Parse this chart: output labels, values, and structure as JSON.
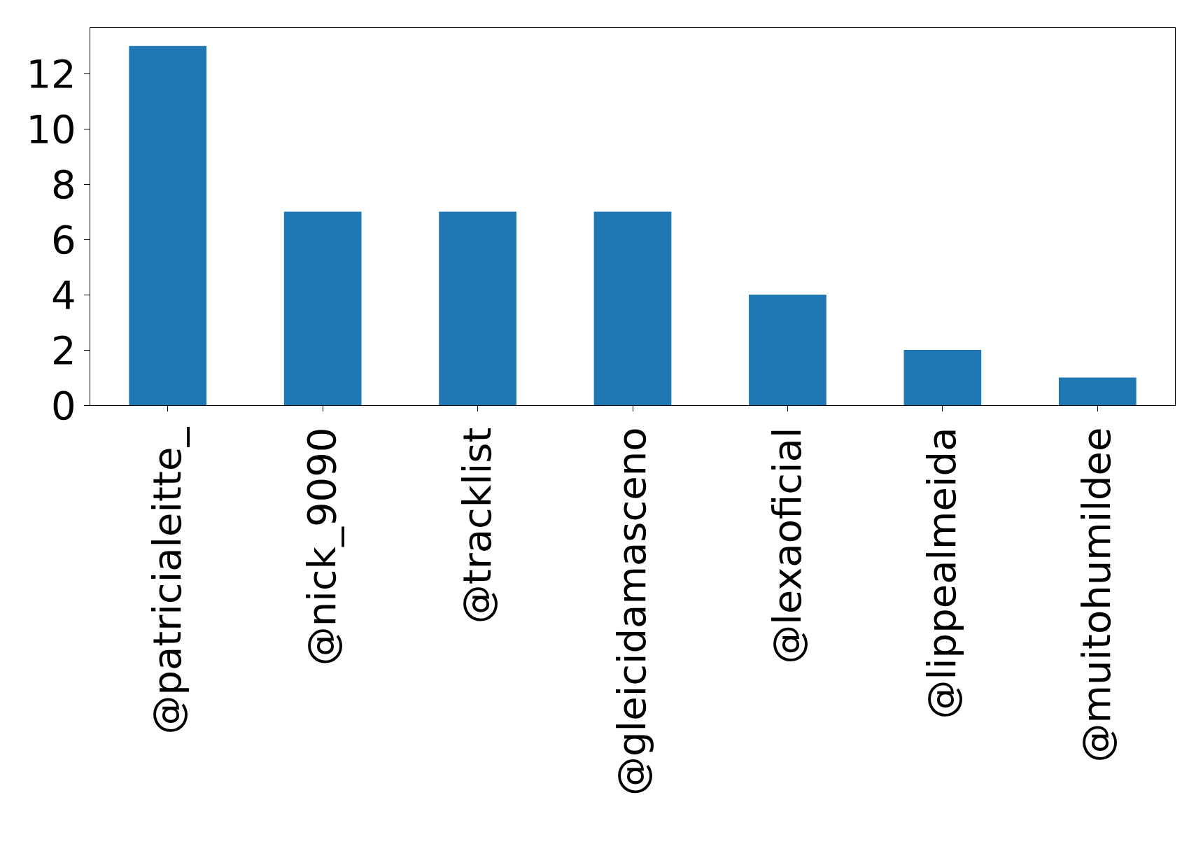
{
  "chart_data": {
    "type": "bar",
    "categories": [
      "@patricialeitte_",
      "@nick_9090",
      "@tracklist",
      "@gleicidamasceno",
      "@lexaoficial",
      "@lippealmeida",
      "@muitohumildee"
    ],
    "values": [
      13,
      7,
      7,
      7,
      4,
      2,
      1
    ],
    "color": "#1f77b4",
    "ylim": [
      0,
      13.65
    ],
    "yticks": [
      0,
      2,
      4,
      6,
      8,
      10,
      12
    ],
    "grid": false
  }
}
